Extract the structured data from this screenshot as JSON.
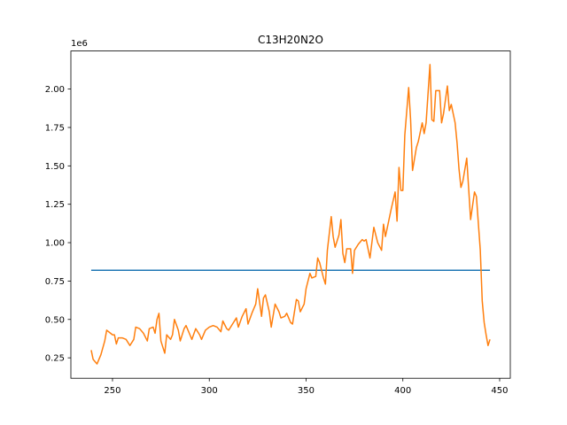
{
  "chart_data": {
    "type": "line",
    "title": "C13H20N2O",
    "y_offset_label": "1e6",
    "xlim": [
      228.5,
      455.5
    ],
    "xticks": [
      250,
      300,
      350,
      400,
      450
    ],
    "ylim": [
      0.117,
      2.248
    ],
    "yticks": [
      0.25,
      {
        "value": 0.5,
        "label": "0.50"
      },
      0.75,
      {
        "value": 1,
        "label": "1.00"
      },
      1.25,
      {
        "value": 1.5,
        "label": "1.50"
      },
      1.75,
      {
        "value": 2,
        "label": "2.00"
      }
    ],
    "grid": false,
    "series": [
      {
        "color": "#1f77b4",
        "x": [
          239,
          445
        ],
        "values": [
          0.82,
          0.82
        ]
      },
      {
        "color": "#ff7f0e",
        "x": [
          239,
          240,
          242,
          244,
          246,
          247,
          249,
          250,
          251,
          252,
          253,
          255,
          257,
          259,
          261,
          262,
          264,
          266,
          268,
          269,
          271,
          272,
          273,
          274,
          275,
          277,
          278,
          280,
          281,
          282,
          284,
          285,
          287,
          288,
          290,
          291,
          293,
          295,
          296,
          298,
          300,
          302,
          304,
          306,
          307,
          309,
          310,
          312,
          314,
          315,
          317,
          319,
          320,
          322,
          324,
          325,
          327,
          328,
          329,
          331,
          332,
          334,
          336,
          337,
          339,
          340,
          342,
          343,
          345,
          346,
          347,
          349,
          350,
          352,
          353,
          355,
          356,
          357,
          359,
          360,
          361,
          363,
          364,
          365,
          367,
          368,
          369,
          370,
          371,
          373,
          374,
          375,
          377,
          379,
          380,
          381,
          383,
          385,
          387,
          389,
          390,
          391,
          394,
          396,
          397,
          398,
          399,
          400,
          401,
          403,
          404,
          405,
          407,
          408,
          410,
          411,
          412,
          414,
          415,
          416,
          417,
          419,
          420,
          421,
          423,
          424,
          425,
          427,
          428,
          429,
          430,
          431,
          433,
          434,
          435,
          437,
          438,
          440,
          441,
          442,
          443,
          444,
          445
        ],
        "values": [
          0.3,
          0.24,
          0.21,
          0.27,
          0.36,
          0.43,
          0.41,
          0.4,
          0.4,
          0.34,
          0.38,
          0.38,
          0.37,
          0.33,
          0.37,
          0.45,
          0.44,
          0.41,
          0.36,
          0.44,
          0.45,
          0.41,
          0.5,
          0.54,
          0.36,
          0.28,
          0.4,
          0.37,
          0.4,
          0.5,
          0.43,
          0.36,
          0.44,
          0.46,
          0.4,
          0.37,
          0.44,
          0.4,
          0.37,
          0.43,
          0.45,
          0.46,
          0.45,
          0.42,
          0.49,
          0.44,
          0.43,
          0.47,
          0.51,
          0.45,
          0.52,
          0.57,
          0.47,
          0.54,
          0.6,
          0.7,
          0.52,
          0.64,
          0.66,
          0.55,
          0.45,
          0.6,
          0.55,
          0.51,
          0.52,
          0.54,
          0.48,
          0.47,
          0.63,
          0.62,
          0.55,
          0.6,
          0.7,
          0.8,
          0.77,
          0.78,
          0.9,
          0.87,
          0.77,
          0.73,
          0.95,
          1.17,
          1.04,
          0.97,
          1.05,
          1.15,
          0.93,
          0.87,
          0.96,
          0.96,
          0.8,
          0.95,
          0.99,
          1.02,
          1.01,
          1.02,
          0.9,
          1.1,
          1.0,
          0.95,
          1.12,
          1.04,
          1.22,
          1.33,
          1.14,
          1.49,
          1.34,
          1.34,
          1.7,
          2.01,
          1.8,
          1.47,
          1.62,
          1.66,
          1.78,
          1.71,
          1.78,
          2.16,
          1.8,
          1.79,
          1.99,
          1.99,
          1.78,
          1.84,
          2.02,
          1.86,
          1.9,
          1.78,
          1.65,
          1.48,
          1.36,
          1.4,
          1.55,
          1.35,
          1.15,
          1.33,
          1.3,
          0.95,
          0.62,
          0.48,
          0.4,
          0.33,
          0.37
        ]
      }
    ]
  }
}
